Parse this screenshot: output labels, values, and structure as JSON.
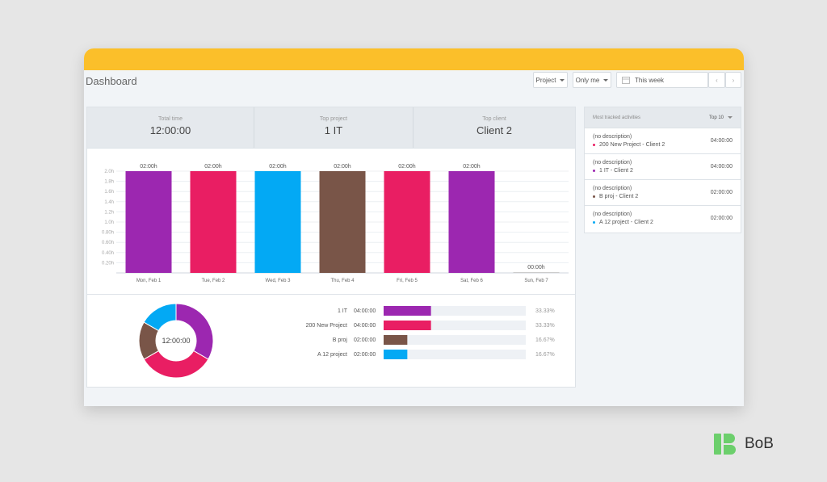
{
  "header": {
    "title": "Dashboard",
    "project_filter": "Project",
    "user_filter": "Only me",
    "date_range": "This week"
  },
  "summary": [
    {
      "label": "Total time",
      "value": "12:00:00"
    },
    {
      "label": "Top project",
      "value": "1 IT"
    },
    {
      "label": "Top client",
      "value": "Client 2"
    }
  ],
  "chart_data": [
    {
      "type": "bar",
      "categories": [
        "Mon, Feb 1",
        "Tue, Feb 2",
        "Wed, Feb 3",
        "Thu, Feb 4",
        "Fri, Feb 5",
        "Sat, Feb 6",
        "Sun, Feb 7"
      ],
      "values": [
        2.0,
        2.0,
        2.0,
        2.0,
        2.0,
        2.0,
        0
      ],
      "data_labels": [
        "02:00h",
        "02:00h",
        "02:00h",
        "02:00h",
        "02:00h",
        "02:00h",
        "00:00h"
      ],
      "colors": [
        "#9c27b0",
        "#e91e63",
        "#03a9f4",
        "#795548",
        "#e91e63",
        "#9c27b0",
        "#cccccc"
      ],
      "y_ticks": [
        "2.0h",
        "1.8h",
        "1.6h",
        "1.4h",
        "1.2h",
        "1.0h",
        "0.80h",
        "0.60h",
        "0.40h",
        "0.20h"
      ],
      "ylim": [
        0,
        2.0
      ],
      "grid": true
    },
    {
      "type": "pie",
      "center_label": "12:00:00",
      "slices": [
        {
          "name": "1 IT",
          "value": 33.33,
          "color": "#9c27b0"
        },
        {
          "name": "200 New Project",
          "value": 33.33,
          "color": "#e91e63"
        },
        {
          "name": "B proj",
          "value": 16.67,
          "color": "#795548"
        },
        {
          "name": "A 12 project",
          "value": 16.67,
          "color": "#03a9f4"
        }
      ]
    }
  ],
  "breakdown": [
    {
      "name": "1 IT",
      "time": "04:00:00",
      "percent": "33.33%",
      "fraction": 0.3333,
      "color": "#9c27b0"
    },
    {
      "name": "200 New Project",
      "time": "04:00:00",
      "percent": "33.33%",
      "fraction": 0.3333,
      "color": "#e91e63"
    },
    {
      "name": "B proj",
      "time": "02:00:00",
      "percent": "16.67%",
      "fraction": 0.1667,
      "color": "#795548"
    },
    {
      "name": "A 12 project",
      "time": "02:00:00",
      "percent": "16.67%",
      "fraction": 0.1667,
      "color": "#03a9f4"
    }
  ],
  "activities": {
    "title": "Most tracked activities",
    "filter": "Top 10",
    "items": [
      {
        "description": "(no description)",
        "project": "200 New Project - Client 2",
        "time": "04:00:00",
        "color": "#e91e63"
      },
      {
        "description": "(no description)",
        "project": "1 IT - Client 2",
        "time": "04:00:00",
        "color": "#9c27b0"
      },
      {
        "description": "(no description)",
        "project": "B proj - Client 2",
        "time": "02:00:00",
        "color": "#795548"
      },
      {
        "description": "(no description)",
        "project": "A 12 project - Client 2",
        "time": "02:00:00",
        "color": "#03a9f4"
      }
    ]
  },
  "brand": {
    "name": "BoB",
    "color": "#6ccf6c"
  }
}
